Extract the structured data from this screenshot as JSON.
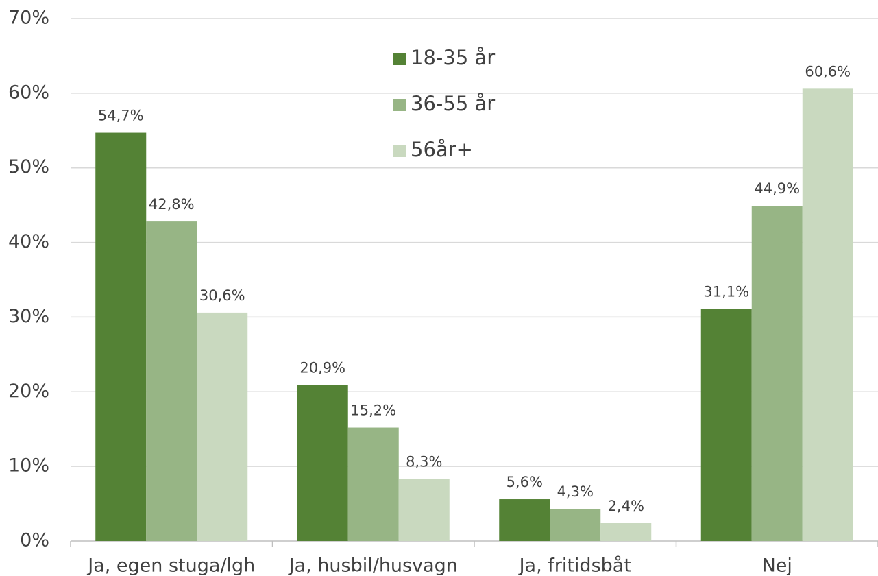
{
  "chart_data": {
    "type": "bar",
    "categories": [
      "Ja, egen stuga/lgh",
      "Ja, husbil/husvagn",
      "Ja, fritidsbåt",
      "Nej"
    ],
    "series": [
      {
        "name": "18-35 år",
        "color": "#548235",
        "values": [
          54.7,
          20.9,
          5.6,
          31.1
        ],
        "value_labels": [
          "54,7%",
          "20,9%",
          "5,6%",
          "31,1%"
        ]
      },
      {
        "name": "36-55 år",
        "color": "#97b585",
        "values": [
          42.8,
          15.2,
          4.3,
          44.9
        ],
        "value_labels": [
          "42,8%",
          "15,2%",
          "4,3%",
          "44,9%"
        ]
      },
      {
        "name": "56år+",
        "color": "#c9d9bf",
        "values": [
          30.6,
          8.3,
          2.4,
          60.6
        ],
        "value_labels": [
          "30,6%",
          "8,3%",
          "2,4%",
          "60,6%"
        ]
      }
    ],
    "ylim": [
      0,
      70
    ],
    "yticks": [
      {
        "value": 0,
        "label": "0%"
      },
      {
        "value": 10,
        "label": "10%"
      },
      {
        "value": 20,
        "label": "20%"
      },
      {
        "value": 30,
        "label": "30%"
      },
      {
        "value": 40,
        "label": "40%"
      },
      {
        "value": 50,
        "label": "50%"
      },
      {
        "value": 60,
        "label": "60%"
      },
      {
        "value": 70,
        "label": "70%"
      }
    ],
    "grid": true,
    "legend": "top"
  }
}
